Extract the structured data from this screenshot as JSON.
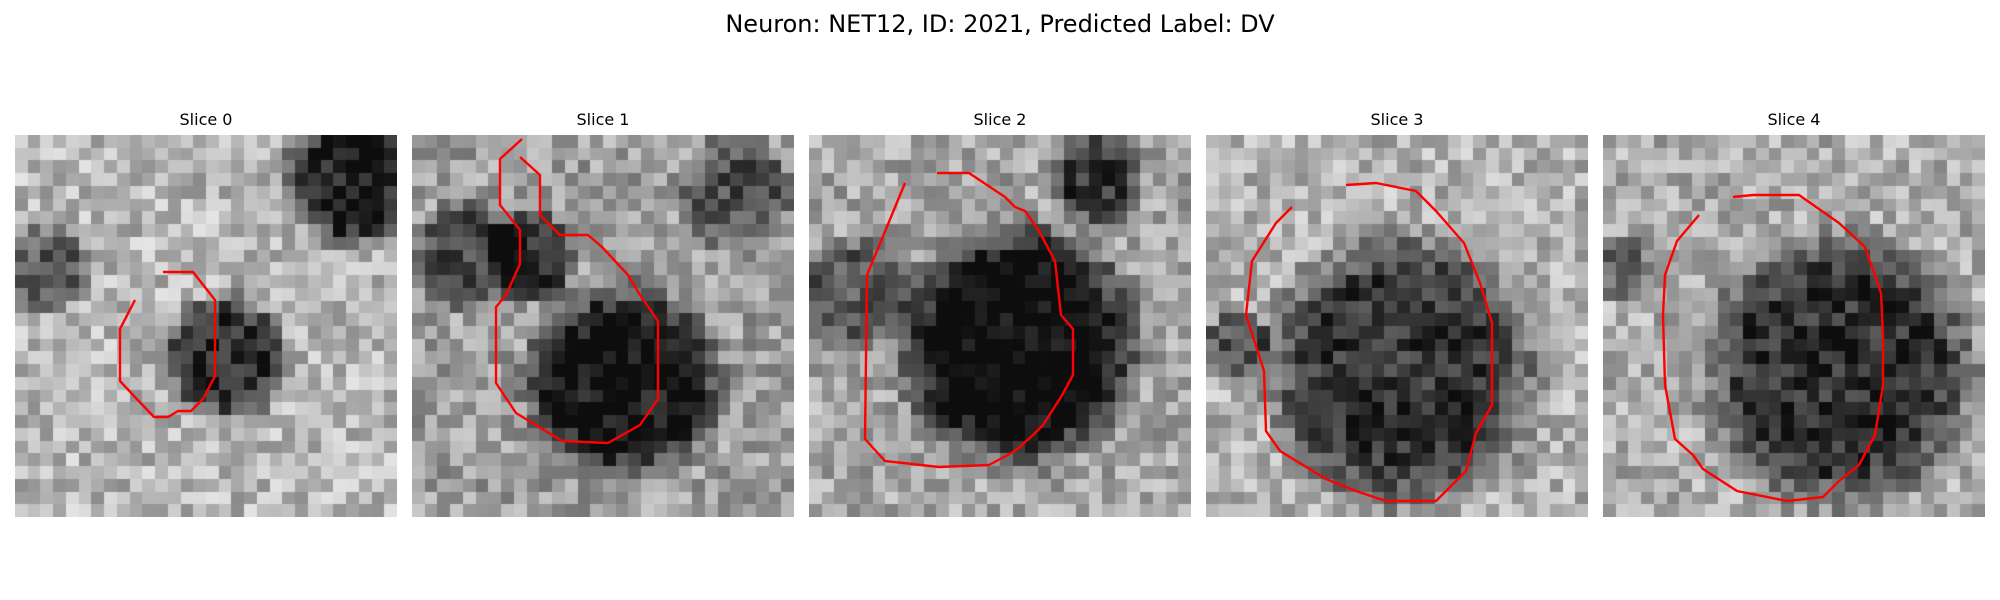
{
  "figure": {
    "title": "Neuron: NET12, ID: 2021, Predicted Label: DV"
  },
  "panels": [
    {
      "title": "Slice 0"
    },
    {
      "title": "Slice 1"
    },
    {
      "title": "Slice 2"
    },
    {
      "title": "Slice 3"
    },
    {
      "title": "Slice 4"
    }
  ],
  "colors": {
    "contour": "#ff0000"
  }
}
